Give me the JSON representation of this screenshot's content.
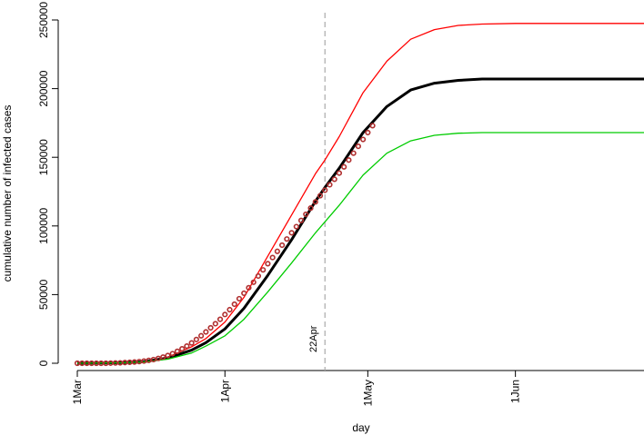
{
  "chart_data": {
    "type": "line",
    "title": "",
    "xlabel": "day",
    "ylabel": "cumulative number of infected cases",
    "x_ticks": [
      "1Mar",
      "1Apr",
      "1May",
      "1Jun"
    ],
    "y_ticks": [
      "0",
      "50000",
      "100000",
      "150000",
      "200000",
      "250000"
    ],
    "xlim": [
      "2020-03-01",
      "2020-06-28"
    ],
    "ylim": [
      0,
      250000
    ],
    "grid": false,
    "annotation": {
      "label": "22Apr",
      "x": "2020-04-22",
      "style": "dashed vertical line"
    },
    "series": [
      {
        "color": "#ff0000",
        "style": "line",
        "points": [
          [
            "2020-03-01",
            0
          ],
          [
            "2020-03-10",
            500
          ],
          [
            "2020-03-15",
            1500
          ],
          [
            "2020-03-20",
            4500
          ],
          [
            "2020-03-25",
            12000
          ],
          [
            "2020-03-28",
            18000
          ],
          [
            "2020-04-01",
            30000
          ],
          [
            "2020-04-05",
            48000
          ],
          [
            "2020-04-10",
            78000
          ],
          [
            "2020-04-15",
            108000
          ],
          [
            "2020-04-20",
            138000
          ],
          [
            "2020-04-22",
            148000
          ],
          [
            "2020-04-25",
            165000
          ],
          [
            "2020-04-30",
            197000
          ],
          [
            "2020-05-05",
            220000
          ],
          [
            "2020-05-10",
            236000
          ],
          [
            "2020-05-15",
            243000
          ],
          [
            "2020-05-20",
            246000
          ],
          [
            "2020-05-25",
            247000
          ],
          [
            "2020-06-01",
            247500
          ],
          [
            "2020-06-28",
            247500
          ]
        ]
      },
      {
        "color": "#000000",
        "style": "line",
        "points": [
          [
            "2020-03-01",
            0
          ],
          [
            "2020-03-10",
            400
          ],
          [
            "2020-03-15",
            1200
          ],
          [
            "2020-03-20",
            3800
          ],
          [
            "2020-03-25",
            9500
          ],
          [
            "2020-03-28",
            15000
          ],
          [
            "2020-04-01",
            25000
          ],
          [
            "2020-04-05",
            40000
          ],
          [
            "2020-04-10",
            64000
          ],
          [
            "2020-04-15",
            90000
          ],
          [
            "2020-04-20",
            118000
          ],
          [
            "2020-04-22",
            128000
          ],
          [
            "2020-04-25",
            142000
          ],
          [
            "2020-04-30",
            168000
          ],
          [
            "2020-05-05",
            187000
          ],
          [
            "2020-05-10",
            199000
          ],
          [
            "2020-05-15",
            204000
          ],
          [
            "2020-05-20",
            206000
          ],
          [
            "2020-05-25",
            207000
          ],
          [
            "2020-06-01",
            207000
          ],
          [
            "2020-06-28",
            207000
          ]
        ]
      },
      {
        "color": "#00cc00",
        "style": "line",
        "points": [
          [
            "2020-03-01",
            0
          ],
          [
            "2020-03-10",
            300
          ],
          [
            "2020-03-15",
            1000
          ],
          [
            "2020-03-20",
            3000
          ],
          [
            "2020-03-25",
            7500
          ],
          [
            "2020-03-28",
            12500
          ],
          [
            "2020-04-01",
            20000
          ],
          [
            "2020-04-05",
            32000
          ],
          [
            "2020-04-10",
            52000
          ],
          [
            "2020-04-15",
            73000
          ],
          [
            "2020-04-20",
            95000
          ],
          [
            "2020-04-22",
            103000
          ],
          [
            "2020-04-25",
            115000
          ],
          [
            "2020-04-30",
            137000
          ],
          [
            "2020-05-05",
            153000
          ],
          [
            "2020-05-10",
            162000
          ],
          [
            "2020-05-15",
            166000
          ],
          [
            "2020-05-20",
            167500
          ],
          [
            "2020-05-25",
            168000
          ],
          [
            "2020-06-01",
            168000
          ],
          [
            "2020-06-28",
            168000
          ]
        ]
      },
      {
        "color": "#b03030",
        "style": "points",
        "points": [
          [
            "2020-03-01",
            0
          ],
          [
            "2020-03-02",
            0
          ],
          [
            "2020-03-03",
            0
          ],
          [
            "2020-03-04",
            0
          ],
          [
            "2020-03-05",
            0
          ],
          [
            "2020-03-06",
            0
          ],
          [
            "2020-03-07",
            0
          ],
          [
            "2020-03-08",
            100
          ],
          [
            "2020-03-09",
            200
          ],
          [
            "2020-03-10",
            300
          ],
          [
            "2020-03-11",
            500
          ],
          [
            "2020-03-12",
            700
          ],
          [
            "2020-03-13",
            900
          ],
          [
            "2020-03-14",
            1200
          ],
          [
            "2020-03-15",
            1600
          ],
          [
            "2020-03-16",
            2100
          ],
          [
            "2020-03-17",
            2700
          ],
          [
            "2020-03-18",
            3500
          ],
          [
            "2020-03-19",
            4500
          ],
          [
            "2020-03-20",
            5600
          ],
          [
            "2020-03-21",
            7000
          ],
          [
            "2020-03-22",
            8700
          ],
          [
            "2020-03-23",
            10500
          ],
          [
            "2020-03-24",
            12500
          ],
          [
            "2020-03-25",
            14800
          ],
          [
            "2020-03-26",
            17300
          ],
          [
            "2020-03-27",
            20000
          ],
          [
            "2020-03-28",
            22800
          ],
          [
            "2020-03-29",
            25800
          ],
          [
            "2020-03-30",
            28800
          ],
          [
            "2020-03-31",
            32000
          ],
          [
            "2020-04-01",
            35500
          ],
          [
            "2020-04-02",
            39000
          ],
          [
            "2020-04-03",
            43000
          ],
          [
            "2020-04-04",
            47000
          ],
          [
            "2020-04-05",
            51000
          ],
          [
            "2020-04-06",
            55000
          ],
          [
            "2020-04-07",
            59000
          ],
          [
            "2020-04-08",
            63500
          ],
          [
            "2020-04-09",
            68000
          ],
          [
            "2020-04-10",
            72500
          ],
          [
            "2020-04-11",
            77000
          ],
          [
            "2020-04-12",
            81500
          ],
          [
            "2020-04-13",
            86000
          ],
          [
            "2020-04-14",
            90500
          ],
          [
            "2020-04-15",
            95000
          ],
          [
            "2020-04-16",
            99500
          ],
          [
            "2020-04-17",
            104000
          ],
          [
            "2020-04-18",
            108500
          ],
          [
            "2020-04-19",
            113000
          ],
          [
            "2020-04-20",
            117500
          ],
          [
            "2020-04-21",
            122000
          ],
          [
            "2020-04-22",
            126000
          ],
          [
            "2020-04-23",
            130000
          ],
          [
            "2020-04-24",
            134000
          ],
          [
            "2020-04-25",
            138500
          ],
          [
            "2020-04-26",
            143000
          ],
          [
            "2020-04-27",
            148000
          ],
          [
            "2020-04-28",
            153000
          ],
          [
            "2020-04-29",
            158000
          ],
          [
            "2020-04-30",
            163000
          ],
          [
            "2020-05-01",
            168000
          ],
          [
            "2020-05-02",
            173000
          ]
        ]
      }
    ]
  }
}
